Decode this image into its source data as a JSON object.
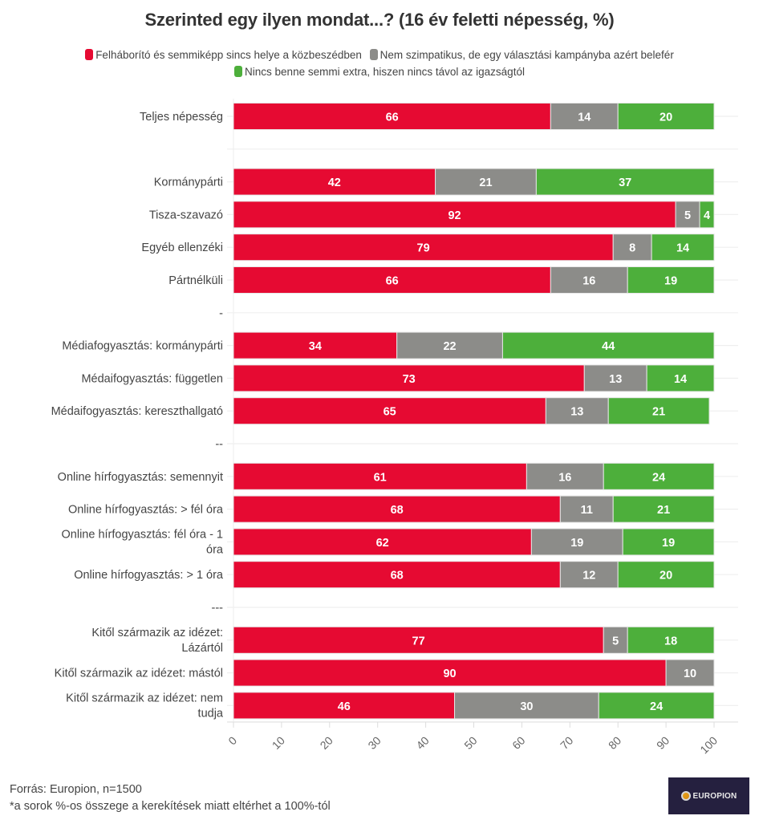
{
  "chart_data": {
    "type": "bar",
    "orientation": "horizontal",
    "stacked": true,
    "title": "Szerinted egy ilyen mondat...? (16 év feletti népesség, %)",
    "xlabel": "",
    "ylabel": "",
    "xlim": [
      0,
      100
    ],
    "xticks": [
      "0",
      "10",
      "20",
      "30",
      "40",
      "50",
      "60",
      "70",
      "80",
      "90",
      "100"
    ],
    "grid": true,
    "legend_position": "top-center",
    "categories": [
      "Teljes népesség",
      "",
      "Kormánypárti",
      "Tisza-szavazó",
      "Egyéb ellenzéki",
      "Pártnélküli",
      "-",
      "Médiafogyasztás: kormánypárti",
      "Médaifogyasztás: független",
      "Médaifogyasztás: kereszthallgató",
      "--",
      "Online hírfogyasztás: semennyit",
      "Online hírfogyasztás: > fél óra",
      "Online hírfogyasztás: fél óra - 1 óra",
      "Online hírfogyasztás: > 1 óra",
      "---",
      "Kitől származik az idézet: Lázártól",
      "Kitől származik az idézet: mástól",
      "Kitől származik az idézet: nem tudja"
    ],
    "series": [
      {
        "name": "Felháborító és semmiképp sincs helye a közbeszédben",
        "color": "#e60a32",
        "values": [
          66,
          null,
          42,
          92,
          79,
          66,
          null,
          34,
          73,
          65,
          null,
          61,
          68,
          62,
          68,
          null,
          77,
          90,
          46
        ]
      },
      {
        "name": "Nem szimpatikus, de egy választási kampányba azért belefér",
        "color": "#8c8c89",
        "values": [
          14,
          null,
          21,
          5,
          8,
          16,
          null,
          22,
          13,
          13,
          null,
          16,
          11,
          19,
          12,
          null,
          5,
          10,
          30
        ]
      },
      {
        "name": "Nincs benne semmi extra, hiszen nincs távol az igazságtól",
        "color": "#4daf3b",
        "values": [
          20,
          null,
          37,
          4,
          14,
          19,
          null,
          44,
          14,
          21,
          null,
          24,
          21,
          19,
          20,
          null,
          18,
          0,
          24
        ]
      }
    ]
  },
  "footer": {
    "source": "Forrás: Europion, n=1500",
    "note": "*a sorok %-os összege a kerekítések miatt eltérhet a 100%-tól"
  },
  "logo": {
    "text": "EUROPION"
  }
}
